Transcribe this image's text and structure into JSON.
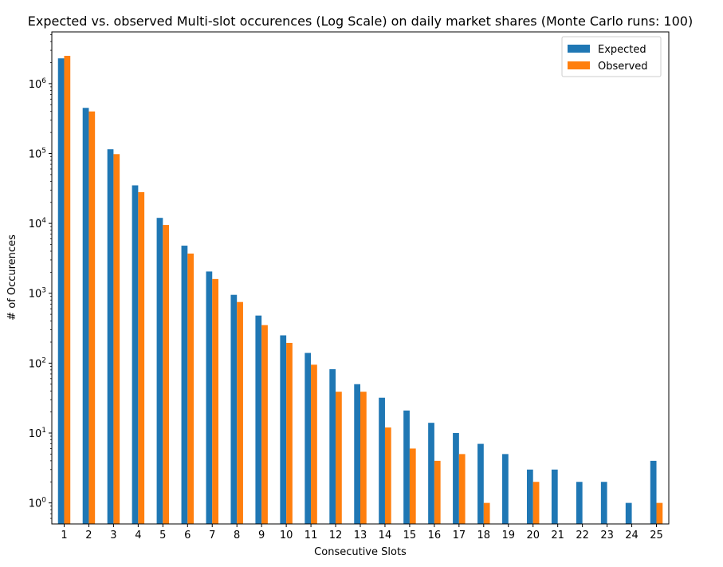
{
  "chart_data": {
    "type": "bar",
    "title": "Expected vs. observed Multi-slot occurences (Log Scale) on daily market shares (Monte Carlo runs: 100)",
    "xlabel": "Consecutive Slots",
    "ylabel": "# of Occurences",
    "yscale": "log",
    "ylim": [
      0.5,
      5500000
    ],
    "y_ticks": [
      {
        "value": 1,
        "base": "10",
        "exp": "0"
      },
      {
        "value": 10,
        "base": "10",
        "exp": "1"
      },
      {
        "value": 100,
        "base": "10",
        "exp": "2"
      },
      {
        "value": 1000,
        "base": "10",
        "exp": "3"
      },
      {
        "value": 10000,
        "base": "10",
        "exp": "4"
      },
      {
        "value": 100000,
        "base": "10",
        "exp": "5"
      },
      {
        "value": 1000000,
        "base": "10",
        "exp": "6"
      }
    ],
    "categories": [
      "1",
      "2",
      "3",
      "4",
      "5",
      "6",
      "7",
      "8",
      "9",
      "10",
      "11",
      "12",
      "13",
      "14",
      "15",
      "16",
      "17",
      "18",
      "19",
      "20",
      "21",
      "22",
      "23",
      "24",
      "25"
    ],
    "series": [
      {
        "name": "Expected",
        "color": "#1f77b4",
        "values": [
          2300000,
          450000,
          115000,
          35000,
          12000,
          4800,
          2050,
          950,
          480,
          250,
          140,
          82,
          50,
          32,
          21,
          14,
          10,
          7,
          5,
          3,
          3,
          2,
          2,
          1,
          4
        ]
      },
      {
        "name": "Observed",
        "color": "#ff7f0e",
        "values": [
          2500000,
          400000,
          98000,
          28000,
          9500,
          3700,
          1600,
          750,
          350,
          195,
          95,
          39,
          39,
          12,
          6,
          4,
          5,
          1,
          0,
          2,
          0,
          0,
          0,
          0,
          1
        ]
      }
    ],
    "legend_position": "top-right",
    "grid": false
  }
}
